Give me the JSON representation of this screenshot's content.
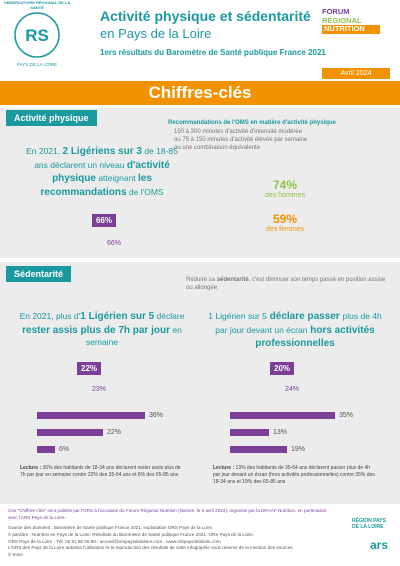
{
  "header": {
    "org_top": "OBSERVATOIRE RÉGIONAL DE LA SANTÉ",
    "org_bottom": "PAYS DE LA LOIRE",
    "logo": "RS",
    "title": "Activité physique et sédentarité",
    "subtitle": "en Pays de la Loire",
    "survey": "1ers résultats du Baromètre de Santé publique France 2021",
    "badge": [
      "FORUM",
      "RÉGIONAL",
      "NUTRITION"
    ],
    "date": "Avril 2024"
  },
  "banner": "Chiffres-clés",
  "activite": {
    "heading": "Activité physique",
    "reco_title": "Recommandations de l'OMS en matière d'activité physique",
    "reco_items": [
      "150 à 300 minutes d'activité d'intensité modérée",
      "ou 75 à 150 minutes d'activité élevée par semaine",
      "ou une combinaison équivalente"
    ],
    "statement": [
      "En 2021, ",
      "2 Ligériens sur 3",
      " de 18-85 ans déclarent un niveau ",
      "d'activité physique",
      " atteignant ",
      "les recommandations",
      " de l'OMS"
    ],
    "overall": "66%",
    "genders": [
      {
        "value": "74%",
        "label": "des hommes"
      },
      {
        "value": "59%",
        "label": "des femmes"
      }
    ]
  },
  "sedentarite": {
    "heading": "Sédentarité",
    "note": [
      "Réduire sa ",
      "sédentarité",
      ", c'est diminuer son temps passé en position assise ou allongée"
    ],
    "blocks": [
      {
        "statement": [
          "En 2021, plus d'",
          "1 Ligérien sur 5",
          " déclare ",
          "rester assis plus de 7h par jour",
          " en semaine"
        ],
        "overall": "22%",
        "overall2": "23%",
        "bars": {
          "values": [
            36,
            22,
            6
          ],
          "value_labels": [
            "36%",
            "22%",
            "6%"
          ]
        },
        "lecture": [
          "Lecture : ",
          "36% des habitants de 18-34 ans déclarent rester assis plus de 7h par jour en semaine contre 22% des 35-64 ans et 6% des 65-85 ans"
        ]
      },
      {
        "statement": [
          "1 Ligérien sur 5",
          " déclare passer ",
          "plus de 4h par jour devant un écran",
          " hors activités professionnelles"
        ],
        "overall": "20%",
        "overall2": "24%",
        "bars": {
          "values": [
            35,
            13,
            19
          ],
          "value_labels": [
            "35%",
            "13%",
            "19%"
          ]
        },
        "lecture": [
          "Lecture : ",
          "13% des habitants de 35-64 ans déclarent passer plus de 4h par jour devant un écran (hors activités professionnelles) contre 35% des 18-34 ans et 19% des 65-85 ans"
        ]
      }
    ]
  },
  "footer": {
    "lines": [
      "Ces \"Chiffres-clés\" sont publiés par l'ORS à l'occasion du Forum Régional Nutrition (Nantes, le 9 avril 2024), organisé par la DRAAF Nutrition, en partenariat avec l'ARS Pays de la Loire.",
      "Source des données : Baromètre de Santé publique France 2021, exploitation ORS Pays de la Loire.",
      "À paraître : Nutrition en Pays de la Loire. Résultats du Baromètre de Santé publique France 2021. ORS Pays de la Loire.",
      "ORS Pays de la Loire - Tél. 02 51 86 05 60 - accueil@orspaysdelaloire.com - www.orspaysdelaloire.com",
      "L'ORS des Pays de la Loire autorise l'utilisation et la reproduction des résultats de cette infographie sous réserve de la mention des sources.",
      "© Iruse"
    ],
    "logos": [
      "RÉGION PAYS DE LA LOIRE",
      "ars"
    ]
  }
}
